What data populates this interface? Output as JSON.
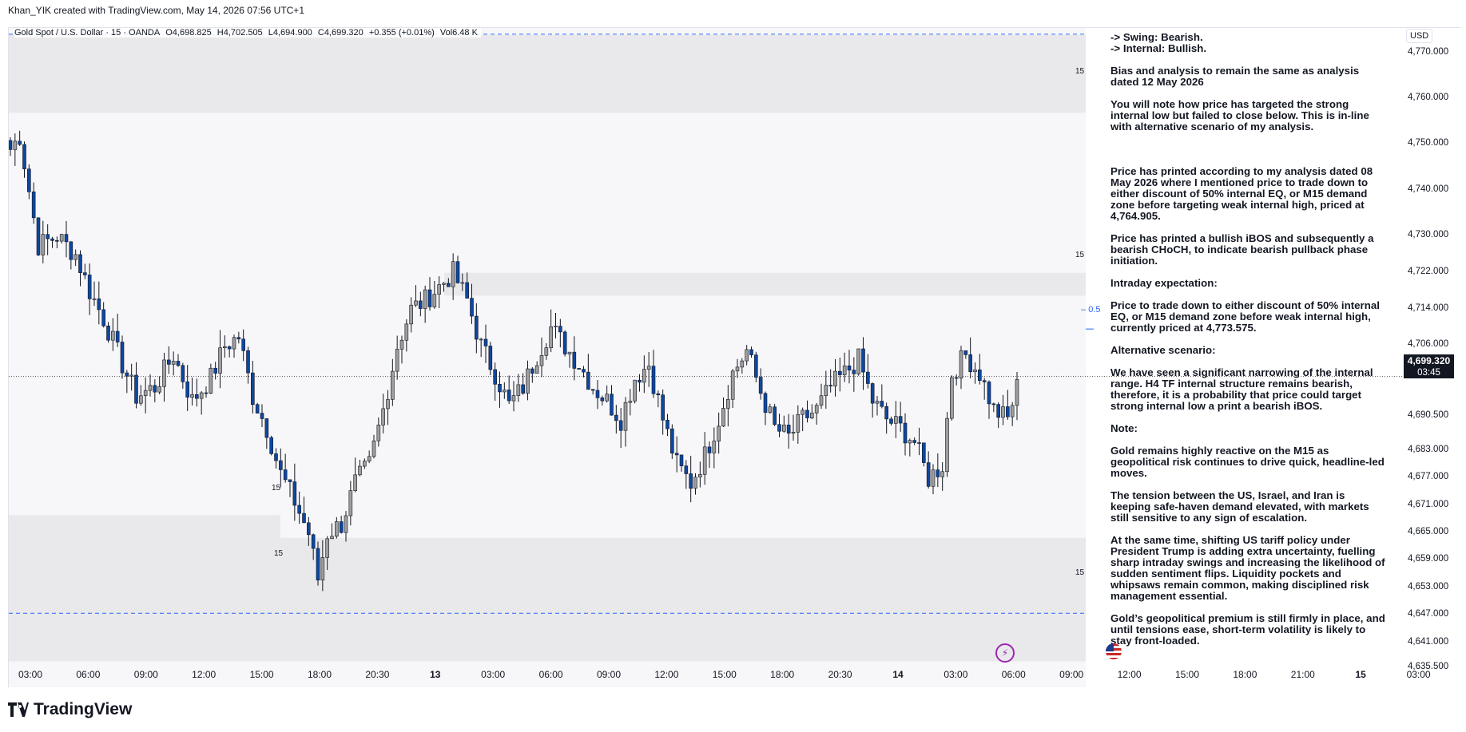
{
  "header": {
    "created_by": "Khan_YIK created with TradingView.com, May 14, 2026 07:56 UTC+1"
  },
  "legend": {
    "symbol": "Gold Spot / U.S. Dollar · 15 · OANDA",
    "open": "O4,698.825",
    "high": "H4,702.505",
    "low": "L4,694.900",
    "close": "C4,699.320",
    "change": "+0.355 (+0.01%)",
    "volume": "Vol6.48 K"
  },
  "price_axis": {
    "currency": "USD",
    "last_price": "4,699.320",
    "countdown": "03:45",
    "labels": [
      "4,770.000",
      "4,760.000",
      "4,750.000",
      "4,740.000",
      "4,730.000",
      "4,722.000",
      "4,714.000",
      "4,706.000",
      "4,690.500",
      "4,683.000",
      "4,677.000",
      "4,671.000",
      "4,665.000",
      "4,659.000",
      "4,653.000",
      "4,647.000",
      "4,641.000",
      "4,635.500"
    ]
  },
  "time_axis": {
    "labels": [
      "03:00",
      "06:00",
      "09:00",
      "12:00",
      "15:00",
      "18:00",
      "20:30",
      "13",
      "03:00",
      "06:00",
      "09:00",
      "12:00",
      "15:00",
      "18:00",
      "20:30",
      "14",
      "03:00",
      "06:00",
      "09:00",
      "12:00",
      "15:00",
      "18:00",
      "21:00",
      "15",
      "03:00"
    ]
  },
  "zones": {
    "label": "15",
    "fib_label": "0.5"
  },
  "notes": [
    "-> Swing: Bearish.\n-> Internal: Bullish.",
    "Bias and analysis to remain the same as analysis dated 12 May 2026",
    "You will note how price has targeted the strong internal low but failed to close below. This is in-line with alternative scenario of my analysis.",
    "Price has printed according to my analysis dated 08 May 2026 where I mentioned price to trade down to either discount of 50% internal EQ, or M15 demand zone before targeting weak internal high, priced at 4,764.905.",
    "Price has printed a bullish iBOS and subsequently a bearish CHoCH, to indicate bearish pullback phase initiation.",
    "Intraday expectation:",
    "Price to trade down to either discount of 50% internal EQ, or M15 demand zone before weak internal high, currently priced at 4,773.575.",
    "Alternative scenario:",
    "We have seen a significant narrowing of the internal range.  H4 TF internal structure remains bearish, therefore, it is a probability that price could target strong internal low a print a bearish iBOS.",
    "Note:",
    "Gold remains highly reactive on the M15 as geopolitical risk continues to drive quick, headline-led moves.",
    "The tension between the US, Israel, and Iran is keeping safe-haven demand elevated, with markets still sensitive to any sign of escalation.",
    "At the same time, shifting US tariff policy under President Trump is adding extra uncertainty, fuelling sharp intraday swings and increasing the likelihood of sudden sentiment flips. Liquidity pockets and whipsaws remain common, making disciplined risk management essential.",
    "Gold’s geopolitical premium is still firmly in place, and until tensions ease, short-term volatility is likely to stay front-loaded."
  ],
  "footer": {
    "brand": "TradingView"
  },
  "chart_data": {
    "type": "candlestick",
    "symbol": "Gold Spot / U.S. Dollar",
    "timeframe": "15",
    "ylim": [
      4635.5,
      4774
    ],
    "grid": false,
    "up_color": "#9e9e9e",
    "down_color": "#0d47a1",
    "waypoints": [
      [
        0,
        4749
      ],
      [
        2,
        4752
      ],
      [
        6,
        4728
      ],
      [
        10,
        4730
      ],
      [
        14,
        4726
      ],
      [
        17,
        4718
      ],
      [
        20,
        4712
      ],
      [
        24,
        4702
      ],
      [
        27,
        4695
      ],
      [
        31,
        4697
      ],
      [
        35,
        4704
      ],
      [
        39,
        4694
      ],
      [
        43,
        4699
      ],
      [
        46,
        4706
      ],
      [
        49,
        4708
      ],
      [
        52,
        4695
      ],
      [
        55,
        4688
      ],
      [
        58,
        4678
      ],
      [
        61,
        4672
      ],
      [
        64,
        4665
      ],
      [
        66,
        4655
      ],
      [
        68,
        4665
      ],
      [
        71,
        4667
      ],
      [
        74,
        4676
      ],
      [
        77,
        4680
      ],
      [
        80,
        4692
      ],
      [
        83,
        4706
      ],
      [
        86,
        4714
      ],
      [
        89,
        4716
      ],
      [
        92,
        4719
      ],
      [
        95,
        4722
      ],
      [
        98,
        4716
      ],
      [
        101,
        4706
      ],
      [
        104,
        4700
      ],
      [
        107,
        4693
      ],
      [
        110,
        4697
      ],
      [
        113,
        4704
      ],
      [
        116,
        4710
      ],
      [
        119,
        4706
      ],
      [
        122,
        4702
      ],
      [
        125,
        4697
      ],
      [
        128,
        4694
      ],
      [
        131,
        4690
      ],
      [
        134,
        4699
      ],
      [
        137,
        4702
      ],
      [
        140,
        4690
      ],
      [
        143,
        4680
      ],
      [
        146,
        4676
      ],
      [
        149,
        4682
      ],
      [
        152,
        4690
      ],
      [
        155,
        4700
      ],
      [
        158,
        4705
      ],
      [
        161,
        4696
      ],
      [
        164,
        4688
      ],
      [
        167,
        4686
      ],
      [
        170,
        4690
      ],
      [
        173,
        4692
      ],
      [
        176,
        4697
      ],
      [
        179,
        4700
      ],
      [
        182,
        4703
      ],
      [
        185,
        4694
      ],
      [
        188,
        4690
      ],
      [
        191,
        4688
      ],
      [
        194,
        4685
      ],
      [
        197,
        4677
      ],
      [
        200,
        4680
      ],
      [
        202,
        4700
      ],
      [
        205,
        4704
      ],
      [
        208,
        4700
      ],
      [
        211,
        4692
      ],
      [
        214,
        4690
      ],
      [
        216,
        4697
      ]
    ],
    "annotations": {
      "zones": [
        {
          "from": 4757,
          "to": 4774,
          "label": "15"
        },
        {
          "from": 4717,
          "to": 4722,
          "label": "15"
        },
        {
          "from": 4664,
          "to": 4669,
          "label": "15"
        },
        {
          "from": 4637,
          "to": 4664,
          "label": "15"
        }
      ],
      "dashed_lines": [
        4774.2,
        4647.5
      ],
      "dotted_line": 4699.32,
      "fib_level": {
        "value": 4709.7,
        "label": "0.5"
      }
    }
  }
}
